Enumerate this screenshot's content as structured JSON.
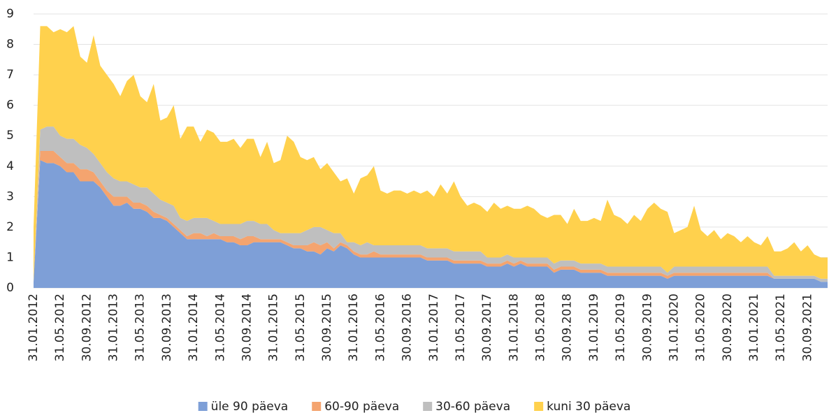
{
  "chart_data": {
    "type": "stacked_area",
    "categories": [
      "31.01.2012",
      null,
      null,
      null,
      "31.05.2012",
      null,
      null,
      null,
      "30.09.2012",
      null,
      null,
      null,
      "31.01.2013",
      null,
      null,
      null,
      "31.05.2013",
      null,
      null,
      null,
      "30.09.2013",
      null,
      null,
      null,
      "31.01.2014",
      null,
      null,
      null,
      "31.05.2014",
      null,
      null,
      null,
      "30.09.2014",
      null,
      null,
      null,
      "31.01.2015",
      null,
      null,
      null,
      "31.05.2015",
      null,
      null,
      null,
      "30.09.2015",
      null,
      null,
      null,
      "31.01.2016",
      null,
      null,
      null,
      "31.05.2016",
      null,
      null,
      null,
      "30.09.2016",
      null,
      null,
      null,
      "31.01.2017",
      null,
      null,
      null,
      "31.05.2017",
      null,
      null,
      null,
      "30.09.2017",
      null,
      null,
      null,
      "31.01.2018",
      null,
      null,
      null,
      "31.05.2018",
      null,
      null,
      null,
      "30.09.2018",
      null,
      null,
      null,
      "31.01.2019",
      null,
      null,
      null,
      "31.05.2019",
      null,
      null,
      null,
      "30.09.2019",
      null,
      null,
      null,
      "31.01.2020",
      null,
      null,
      null,
      "31.05.2020",
      null,
      null,
      null,
      "30.09.2020",
      null,
      null,
      null,
      "31.01.2021",
      null,
      null,
      null,
      "31.05.2021",
      null,
      null,
      null,
      "30.09.2021",
      null,
      null,
      null
    ],
    "series": [
      {
        "name": "üle 90 päeva",
        "color": "#7e9fd7",
        "values": [
          0.2,
          4.2,
          4.1,
          4.1,
          4.0,
          3.8,
          3.8,
          3.5,
          3.5,
          3.5,
          3.3,
          3.0,
          2.7,
          2.7,
          2.8,
          2.6,
          2.6,
          2.5,
          2.3,
          2.3,
          2.2,
          2.0,
          1.8,
          1.6,
          1.6,
          1.6,
          1.6,
          1.6,
          1.6,
          1.5,
          1.5,
          1.4,
          1.4,
          1.5,
          1.5,
          1.5,
          1.5,
          1.5,
          1.4,
          1.3,
          1.3,
          1.2,
          1.2,
          1.1,
          1.3,
          1.2,
          1.4,
          1.3,
          1.1,
          1.0,
          1.0,
          1.0,
          1.0,
          1.0,
          1.0,
          1.0,
          1.0,
          1.0,
          1.0,
          0.9,
          0.9,
          0.9,
          0.9,
          0.8,
          0.8,
          0.8,
          0.8,
          0.8,
          0.7,
          0.7,
          0.7,
          0.8,
          0.7,
          0.8,
          0.7,
          0.7,
          0.7,
          0.7,
          0.5,
          0.6,
          0.6,
          0.6,
          0.5,
          0.5,
          0.5,
          0.5,
          0.4,
          0.4,
          0.4,
          0.4,
          0.4,
          0.4,
          0.4,
          0.4,
          0.4,
          0.3,
          0.4,
          0.4,
          0.4,
          0.4,
          0.4,
          0.4,
          0.4,
          0.4,
          0.4,
          0.4,
          0.4,
          0.4,
          0.4,
          0.4,
          0.4,
          0.3,
          0.3,
          0.3,
          0.3,
          0.3,
          0.3,
          0.3,
          0.2,
          0.2
        ]
      },
      {
        "name": "60-90 päeva",
        "color": "#f4a46f",
        "values": [
          0,
          0.3,
          0.4,
          0.4,
          0.3,
          0.3,
          0.3,
          0.4,
          0.4,
          0.3,
          0.2,
          0.2,
          0.3,
          0.3,
          0.2,
          0.2,
          0.2,
          0.2,
          0.2,
          0.1,
          0.1,
          0.1,
          0.1,
          0.1,
          0.2,
          0.2,
          0.1,
          0.2,
          0.1,
          0.2,
          0.2,
          0.2,
          0.3,
          0.2,
          0.1,
          0.1,
          0.1,
          0.1,
          0.1,
          0.1,
          0.1,
          0.2,
          0.3,
          0.3,
          0.2,
          0.1,
          0.1,
          0.1,
          0.1,
          0.1,
          0.1,
          0.2,
          0.1,
          0.1,
          0.1,
          0.1,
          0.1,
          0.1,
          0.1,
          0.1,
          0.1,
          0.1,
          0.1,
          0.1,
          0.1,
          0.1,
          0.1,
          0.1,
          0.1,
          0.1,
          0.1,
          0.1,
          0.1,
          0.1,
          0.1,
          0.1,
          0.1,
          0.1,
          0.1,
          0.1,
          0.1,
          0.1,
          0.1,
          0.1,
          0.1,
          0.1,
          0.1,
          0.1,
          0.1,
          0.1,
          0.1,
          0.1,
          0.1,
          0.1,
          0.1,
          0.1,
          0.1,
          0.1,
          0.1,
          0.1,
          0.1,
          0.1,
          0.1,
          0.1,
          0.1,
          0.1,
          0.1,
          0.1,
          0.1,
          0.1,
          0.1,
          0,
          0,
          0,
          0,
          0,
          0,
          0,
          0,
          0
        ]
      },
      {
        "name": "30-60 päeva",
        "color": "#bfbfbf",
        "values": [
          0,
          0.7,
          0.8,
          0.8,
          0.7,
          0.8,
          0.8,
          0.8,
          0.7,
          0.6,
          0.6,
          0.6,
          0.6,
          0.5,
          0.5,
          0.6,
          0.5,
          0.6,
          0.6,
          0.5,
          0.5,
          0.6,
          0.4,
          0.5,
          0.5,
          0.5,
          0.6,
          0.4,
          0.4,
          0.4,
          0.4,
          0.5,
          0.5,
          0.5,
          0.5,
          0.5,
          0.3,
          0.2,
          0.3,
          0.4,
          0.4,
          0.5,
          0.5,
          0.6,
          0.4,
          0.5,
          0.3,
          0.1,
          0.3,
          0.3,
          0.4,
          0.2,
          0.3,
          0.3,
          0.3,
          0.3,
          0.3,
          0.3,
          0.3,
          0.3,
          0.3,
          0.3,
          0.3,
          0.3,
          0.3,
          0.3,
          0.3,
          0.3,
          0.2,
          0.2,
          0.2,
          0.2,
          0.2,
          0.1,
          0.2,
          0.2,
          0.2,
          0.2,
          0.2,
          0.2,
          0.2,
          0.2,
          0.2,
          0.2,
          0.2,
          0.2,
          0.2,
          0.2,
          0.2,
          0.2,
          0.2,
          0.2,
          0.2,
          0.2,
          0.2,
          0.1,
          0.2,
          0.2,
          0.2,
          0.2,
          0.2,
          0.2,
          0.2,
          0.2,
          0.2,
          0.2,
          0.2,
          0.2,
          0.2,
          0.2,
          0.2,
          0.1,
          0.1,
          0.1,
          0.1,
          0.1,
          0.1,
          0.1,
          0.1,
          0.1
        ]
      },
      {
        "name": "kuni 30 päeva",
        "color": "#ffd14d",
        "values": [
          1.8,
          3.4,
          3.3,
          3.1,
          3.5,
          3.5,
          3.7,
          2.9,
          2.8,
          3.9,
          3.2,
          3.2,
          3.1,
          2.8,
          3.3,
          3.6,
          3.0,
          2.8,
          3.6,
          2.6,
          2.8,
          3.3,
          2.6,
          3.1,
          3.0,
          2.5,
          2.9,
          2.9,
          2.7,
          2.7,
          2.8,
          2.5,
          2.7,
          2.7,
          2.2,
          2.7,
          2.2,
          2.4,
          3.2,
          3.0,
          2.5,
          2.3,
          2.3,
          1.9,
          2.2,
          2.0,
          1.7,
          2.1,
          1.6,
          2.2,
          2.2,
          2.6,
          1.8,
          1.7,
          1.8,
          1.8,
          1.7,
          1.8,
          1.7,
          1.9,
          1.7,
          2.1,
          1.8,
          2.3,
          1.8,
          1.5,
          1.6,
          1.5,
          1.5,
          1.8,
          1.6,
          1.6,
          1.6,
          1.6,
          1.7,
          1.6,
          1.4,
          1.3,
          1.6,
          1.5,
          1.2,
          1.7,
          1.4,
          1.4,
          1.5,
          1.4,
          2.2,
          1.7,
          1.6,
          1.4,
          1.7,
          1.5,
          1.9,
          2.1,
          1.9,
          2.0,
          1.1,
          1.2,
          1.3,
          2.0,
          1.2,
          1.0,
          1.2,
          0.9,
          1.1,
          1.0,
          0.8,
          1.0,
          0.8,
          0.7,
          1.0,
          0.8,
          0.8,
          0.9,
          1.1,
          0.8,
          1.0,
          0.7,
          0.7,
          0.7
        ]
      }
    ],
    "ylim": [
      0,
      9
    ],
    "yticks": [
      0,
      1,
      2,
      3,
      4,
      5,
      6,
      7,
      8,
      9
    ],
    "grid": true,
    "legend": "bottom"
  }
}
